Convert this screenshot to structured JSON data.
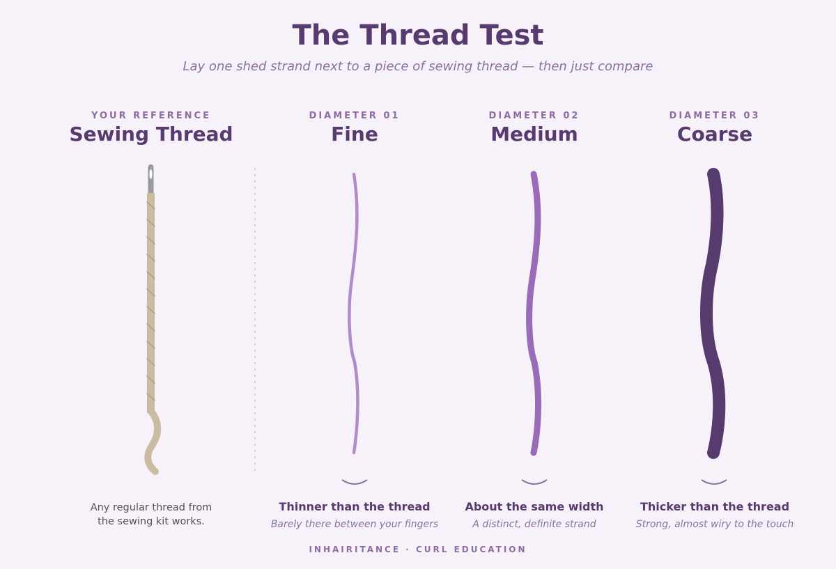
{
  "title": "The Thread Test",
  "subtitle": "Lay one shed strand next to a piece of sewing thread — then just compare",
  "reference": {
    "eyebrow": "YOUR REFERENCE",
    "heading": "Sewing Thread",
    "note_line1": "Any regular thread from",
    "note_line2": "the sewing kit works."
  },
  "diameters": [
    {
      "eyebrow": "DIAMETER 01",
      "heading": "Fine",
      "desc_title": "Thinner than the thread",
      "desc_sub": "Barely there between your fingers",
      "color": "#b08cc8"
    },
    {
      "eyebrow": "DIAMETER 02",
      "heading": "Medium",
      "desc_title": "About the same width",
      "desc_sub": "A distinct, definite strand",
      "color": "#9a6bb6"
    },
    {
      "eyebrow": "DIAMETER 03",
      "heading": "Coarse",
      "desc_title": "Thicker than the thread",
      "desc_sub": "Strong, almost wiry to the touch",
      "color": "#573a6e"
    }
  ],
  "colors": {
    "heading": "#573a6e",
    "accent": "#8d6ea3",
    "thread": "#cbbba1",
    "needle": "#9a9a9a",
    "background": "#f7f2f9"
  },
  "footer": "INHAIRITANCE · CURL EDUCATION"
}
